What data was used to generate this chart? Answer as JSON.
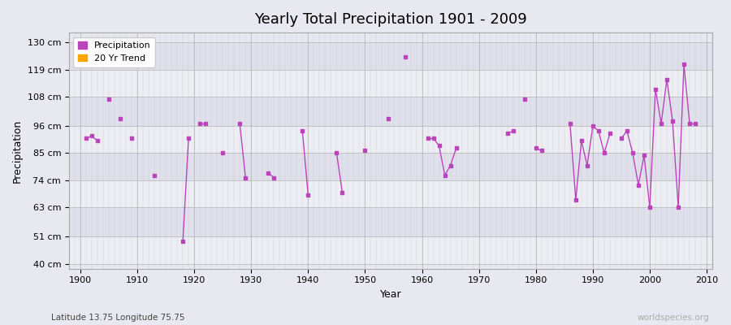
{
  "title": "Yearly Total Precipitation 1901 - 2009",
  "xlabel": "Year",
  "ylabel": "Precipitation",
  "subtitle": "Latitude 13.75 Longitude 75.75",
  "watermark": "worldspecies.org",
  "ylim": [
    38,
    134
  ],
  "ytick_labels": [
    "40 cm",
    "51 cm",
    "63 cm",
    "74 cm",
    "85 cm",
    "96 cm",
    "108 cm",
    "119 cm",
    "130 cm"
  ],
  "ytick_values": [
    40,
    51,
    63,
    74,
    85,
    96,
    108,
    119,
    130
  ],
  "background_color": "#e8e8f0",
  "plot_bg_color": "#e8e8f0",
  "line_color": "#bb44bb",
  "marker_color": "#bb44bb",
  "trend_color": "#ffa500",
  "legend_label_precip": "Precipitation",
  "legend_label_trend": "20 Yr Trend",
  "years": [
    1901,
    1902,
    1903,
    1905,
    1907,
    1909,
    1913,
    1918,
    1919,
    1921,
    1922,
    1925,
    1928,
    1929,
    1933,
    1934,
    1939,
    1940,
    1945,
    1946,
    1950,
    1954,
    1957,
    1961,
    1962,
    1963,
    1964,
    1965,
    1966,
    1975,
    1976,
    1978,
    1980,
    1981,
    1986,
    1987,
    1988,
    1989,
    1990,
    1991,
    1992,
    1993,
    1995,
    1996,
    1997,
    1998,
    1999,
    2000,
    2001,
    2002,
    2003,
    2004,
    2005,
    2006,
    2007,
    2008
  ],
  "precip": [
    91,
    92,
    90,
    107,
    99,
    91,
    76,
    49,
    91,
    97,
    97,
    85,
    97,
    75,
    77,
    75,
    94,
    68,
    85,
    69,
    86,
    99,
    124,
    91,
    91,
    88,
    76,
    80,
    87,
    93,
    94,
    107,
    87,
    86,
    97,
    66,
    90,
    80,
    96,
    94,
    85,
    93,
    91,
    94,
    85,
    72,
    84,
    63,
    111,
    97,
    115,
    98,
    63,
    121,
    97,
    97
  ],
  "xlim": [
    1898,
    2011
  ],
  "band_colors": [
    "#ededf4",
    "#e0e0ec"
  ]
}
